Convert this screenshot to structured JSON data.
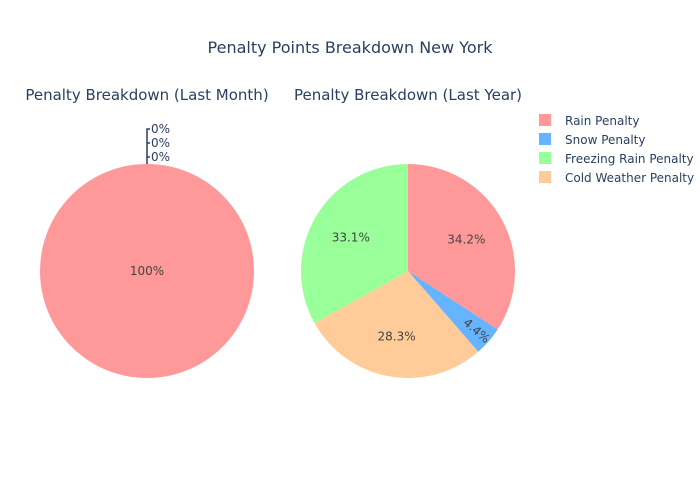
{
  "figure": {
    "title": "Penalty Points Breakdown New York"
  },
  "chart_data": [
    {
      "type": "pie",
      "title": "Penalty Breakdown (Last Month)",
      "labels": [
        "Rain Penalty",
        "Snow Penalty",
        "Freezing Rain Penalty",
        "Cold Weather Penalty"
      ],
      "values": [
        100,
        0,
        0,
        0
      ],
      "percent_labels": [
        "100%",
        "0%",
        "0%",
        "0%"
      ]
    },
    {
      "type": "pie",
      "title": "Penalty Breakdown (Last Year)",
      "labels": [
        "Rain Penalty",
        "Snow Penalty",
        "Cold Weather Penalty",
        "Freezing Rain Penalty"
      ],
      "values": [
        34.2,
        4.4,
        28.3,
        33.1
      ],
      "percent_labels": [
        "34.2%",
        "4.4%",
        "28.3%",
        "33.1%"
      ]
    }
  ],
  "legend": {
    "items": [
      {
        "label": "Rain Penalty",
        "color": "#ff9999"
      },
      {
        "label": "Snow Penalty",
        "color": "#66b3ff"
      },
      {
        "label": "Freezing Rain Penalty",
        "color": "#99ff99"
      },
      {
        "label": "Cold Weather Penalty",
        "color": "#ffcc99"
      }
    ]
  },
  "colors": {
    "Rain Penalty": "#ff9999",
    "Snow Penalty": "#66b3ff",
    "Freezing Rain Penalty": "#99ff99",
    "Cold Weather Penalty": "#ffcc99"
  }
}
